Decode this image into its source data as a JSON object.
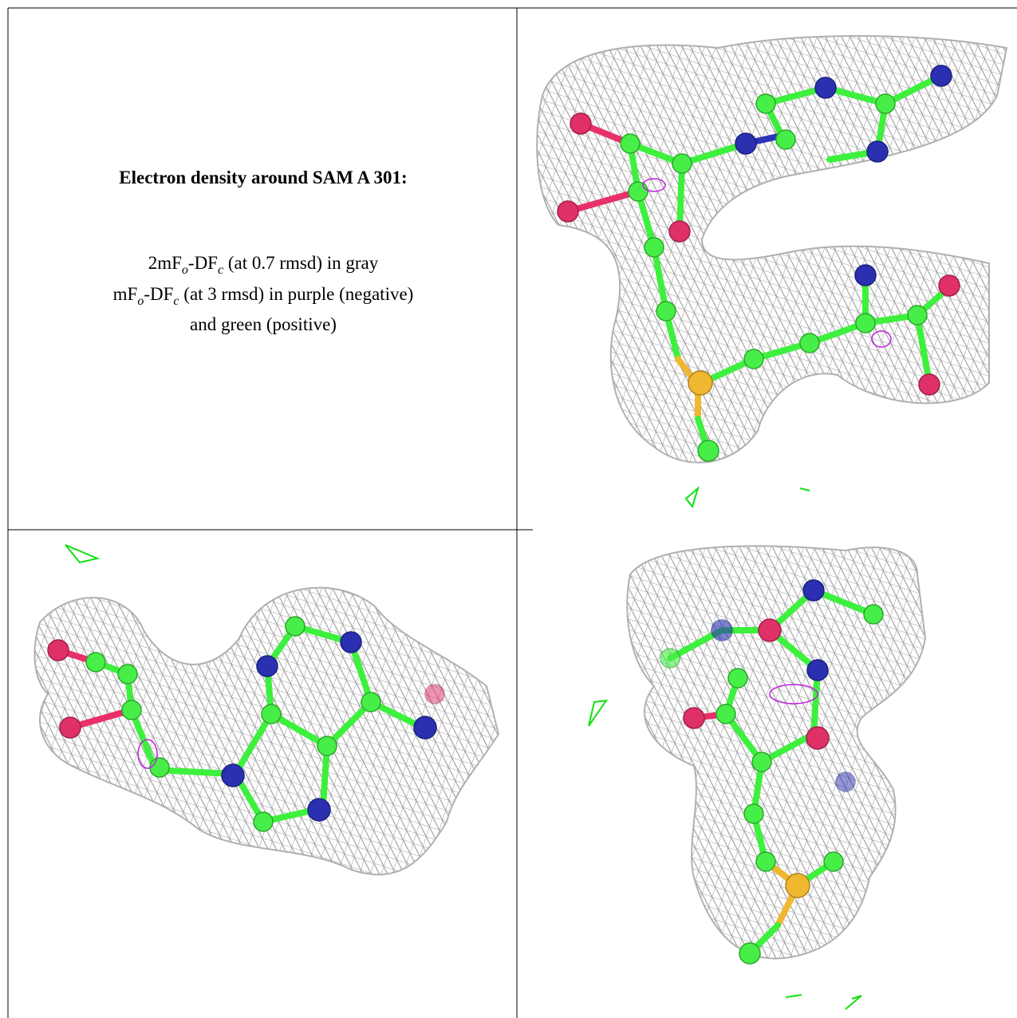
{
  "figure": {
    "title": "Electron density around SAM A 301:",
    "legend_lines": [
      [
        "2mF",
        "o",
        "-DF",
        "c",
        " (at 0.7 rmsd) in gray"
      ],
      [
        "mF",
        "o",
        "-DF",
        "c",
        " (at 3 rmsd) in purple (negative)"
      ],
      [
        "and green (positive)"
      ]
    ]
  }
}
